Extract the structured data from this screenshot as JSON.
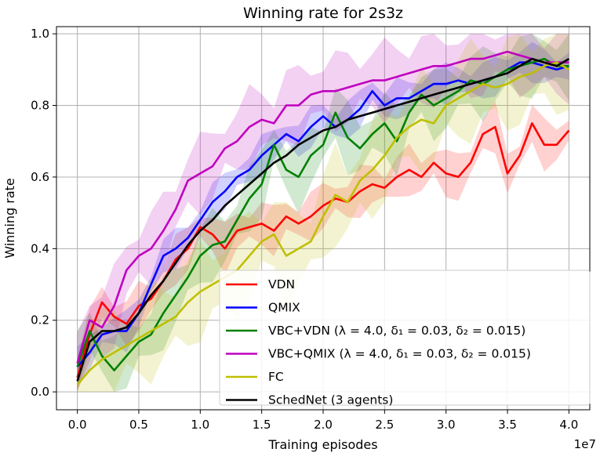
{
  "chart_data": {
    "type": "line",
    "title": "Winning rate for 2s3z",
    "xlabel": "Training episodes",
    "ylabel": "Winning rate",
    "x_scale_label": "1e7",
    "xlim": [
      -0.17,
      4.17
    ],
    "ylim": [
      -0.05,
      1.02
    ],
    "xticks": [
      0.0,
      0.5,
      1.0,
      1.5,
      2.0,
      2.5,
      3.0,
      3.5,
      4.0
    ],
    "xtick_labels": [
      "0.0",
      "0.5",
      "1.0",
      "1.5",
      "2.0",
      "2.5",
      "3.0",
      "3.5",
      "4.0"
    ],
    "yticks": [
      0.0,
      0.2,
      0.4,
      0.6,
      0.8,
      1.0
    ],
    "ytick_labels": [
      "0.0",
      "0.2",
      "0.4",
      "0.6",
      "0.8",
      "1.0"
    ],
    "grid": true,
    "legend_position": "lower-right",
    "x": [
      0.0,
      0.1,
      0.2,
      0.3,
      0.4,
      0.5,
      0.6,
      0.7,
      0.8,
      0.9,
      1.0,
      1.1,
      1.2,
      1.3,
      1.4,
      1.5,
      1.6,
      1.7,
      1.8,
      1.9,
      2.0,
      2.1,
      2.2,
      2.3,
      2.4,
      2.5,
      2.6,
      2.7,
      2.8,
      2.9,
      3.0,
      3.1,
      3.2,
      3.3,
      3.4,
      3.5,
      3.6,
      3.7,
      3.8,
      3.9,
      4.0
    ],
    "series": [
      {
        "name": "VDN",
        "color": "#ff0000",
        "band_width": 0.05,
        "values": [
          0.04,
          0.16,
          0.25,
          0.21,
          0.19,
          0.24,
          0.26,
          0.31,
          0.37,
          0.4,
          0.46,
          0.44,
          0.4,
          0.45,
          0.46,
          0.47,
          0.45,
          0.49,
          0.47,
          0.49,
          0.52,
          0.54,
          0.53,
          0.56,
          0.58,
          0.57,
          0.6,
          0.62,
          0.6,
          0.64,
          0.61,
          0.6,
          0.64,
          0.72,
          0.74,
          0.61,
          0.66,
          0.75,
          0.69,
          0.69,
          0.73
        ]
      },
      {
        "name": "QMIX",
        "color": "#0000ff",
        "band_width": 0.04,
        "values": [
          0.07,
          0.11,
          0.16,
          0.17,
          0.17,
          0.22,
          0.3,
          0.38,
          0.4,
          0.43,
          0.48,
          0.53,
          0.56,
          0.6,
          0.62,
          0.66,
          0.69,
          0.72,
          0.7,
          0.74,
          0.77,
          0.74,
          0.76,
          0.79,
          0.84,
          0.8,
          0.82,
          0.82,
          0.84,
          0.86,
          0.86,
          0.87,
          0.86,
          0.87,
          0.88,
          0.9,
          0.92,
          0.92,
          0.91,
          0.9,
          0.91
        ]
      },
      {
        "name": "VBC+VDN (λ = 4.0, δ₁ = 0.03, δ₂ = 0.015)",
        "color": "#008000",
        "band_width": 0.07,
        "values": [
          0.07,
          0.17,
          0.1,
          0.06,
          0.1,
          0.14,
          0.16,
          0.22,
          0.27,
          0.32,
          0.38,
          0.41,
          0.42,
          0.48,
          0.54,
          0.58,
          0.69,
          0.62,
          0.6,
          0.66,
          0.69,
          0.78,
          0.71,
          0.68,
          0.72,
          0.75,
          0.7,
          0.78,
          0.83,
          0.8,
          0.82,
          0.84,
          0.87,
          0.86,
          0.88,
          0.9,
          0.91,
          0.92,
          0.93,
          0.91,
          0.91
        ]
      },
      {
        "name": "VBC+QMIX (λ = 4.0, δ₁ = 0.03, δ₂ = 0.015)",
        "color": "#bf00bf",
        "band_width": 0.08,
        "values": [
          0.08,
          0.2,
          0.18,
          0.24,
          0.34,
          0.38,
          0.4,
          0.45,
          0.51,
          0.59,
          0.61,
          0.63,
          0.68,
          0.7,
          0.74,
          0.76,
          0.75,
          0.8,
          0.8,
          0.83,
          0.84,
          0.84,
          0.85,
          0.86,
          0.87,
          0.87,
          0.88,
          0.89,
          0.9,
          0.91,
          0.91,
          0.92,
          0.93,
          0.93,
          0.94,
          0.95,
          0.94,
          0.93,
          0.92,
          0.92,
          0.92
        ]
      },
      {
        "name": "FC",
        "color": "#bfbf00",
        "band_width": 0.1,
        "values": [
          0.02,
          0.06,
          0.09,
          0.11,
          0.13,
          0.15,
          0.17,
          0.19,
          0.21,
          0.25,
          0.28,
          0.3,
          0.32,
          0.34,
          0.38,
          0.42,
          0.44,
          0.38,
          0.4,
          0.42,
          0.49,
          0.55,
          0.53,
          0.59,
          0.62,
          0.66,
          0.71,
          0.74,
          0.76,
          0.75,
          0.8,
          0.82,
          0.84,
          0.86,
          0.85,
          0.86,
          0.88,
          0.89,
          0.91,
          0.92,
          0.9
        ]
      },
      {
        "name": "SchedNet (3 agents)",
        "color": "#000000",
        "band_width": 0.0,
        "values": [
          0.03,
          0.14,
          0.17,
          0.17,
          0.18,
          0.22,
          0.27,
          0.31,
          0.36,
          0.41,
          0.45,
          0.48,
          0.52,
          0.55,
          0.58,
          0.61,
          0.64,
          0.66,
          0.69,
          0.71,
          0.73,
          0.74,
          0.76,
          0.77,
          0.78,
          0.79,
          0.8,
          0.81,
          0.82,
          0.83,
          0.84,
          0.85,
          0.86,
          0.87,
          0.88,
          0.89,
          0.91,
          0.93,
          0.92,
          0.91,
          0.93
        ]
      }
    ]
  }
}
